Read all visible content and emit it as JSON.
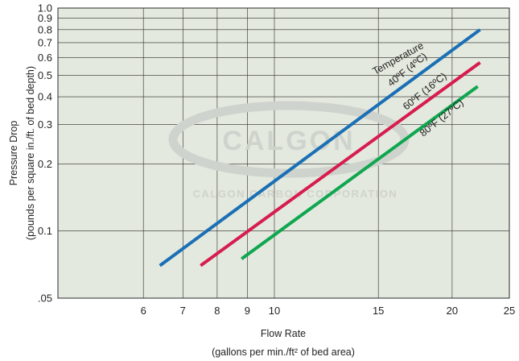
{
  "chart_data": {
    "type": "line",
    "title": "",
    "xlabel": "Flow Rate",
    "xlabel_sub": "(gallons per min./ft² of bed area)",
    "ylabel": "Pressure Drop",
    "ylabel_sub": "(pounds per square in./ft. of bed depth)",
    "x_scale": "log",
    "y_scale": "log",
    "xlim": [
      4.3,
      25
    ],
    "ylim": [
      0.05,
      1.0
    ],
    "x_ticks": [
      6,
      7,
      8,
      9,
      10,
      15,
      20,
      25
    ],
    "x_tick_labels": [
      "6",
      "7",
      "8",
      "9",
      "10",
      "15",
      "20",
      "25"
    ],
    "y_ticks": [
      0.05,
      0.1,
      0.2,
      0.3,
      0.4,
      0.5,
      0.6,
      0.7,
      0.8,
      0.9,
      1.0
    ],
    "y_tick_labels": [
      ".05",
      "0.1",
      "0.2",
      "0.3",
      "0.4",
      "0.5",
      "0.6",
      "0.7",
      "0.8",
      "0.9",
      "1.0"
    ],
    "grid": true,
    "legend_title": "Temperature",
    "series": [
      {
        "name": "40ºF (4ºC)",
        "color": "#1a6fb5",
        "x": [
          6.4,
          22.3
        ],
        "y": [
          0.07,
          0.8
        ]
      },
      {
        "name": "60ºF (16ºC)",
        "color": "#d71c4f",
        "x": [
          7.5,
          22.3
        ],
        "y": [
          0.07,
          0.57
        ]
      },
      {
        "name": "80ºF (27ºC)",
        "color": "#10a650",
        "x": [
          8.8,
          22.1
        ],
        "y": [
          0.075,
          0.445
        ]
      }
    ]
  },
  "watermark": {
    "logo_text": "CALGON",
    "company_text": "CALGON CARBON CORPORATION"
  },
  "colors": {
    "plot_background": "#e3e9de",
    "grid": "#2b2b2b",
    "watermark": "#cfd3cd"
  }
}
